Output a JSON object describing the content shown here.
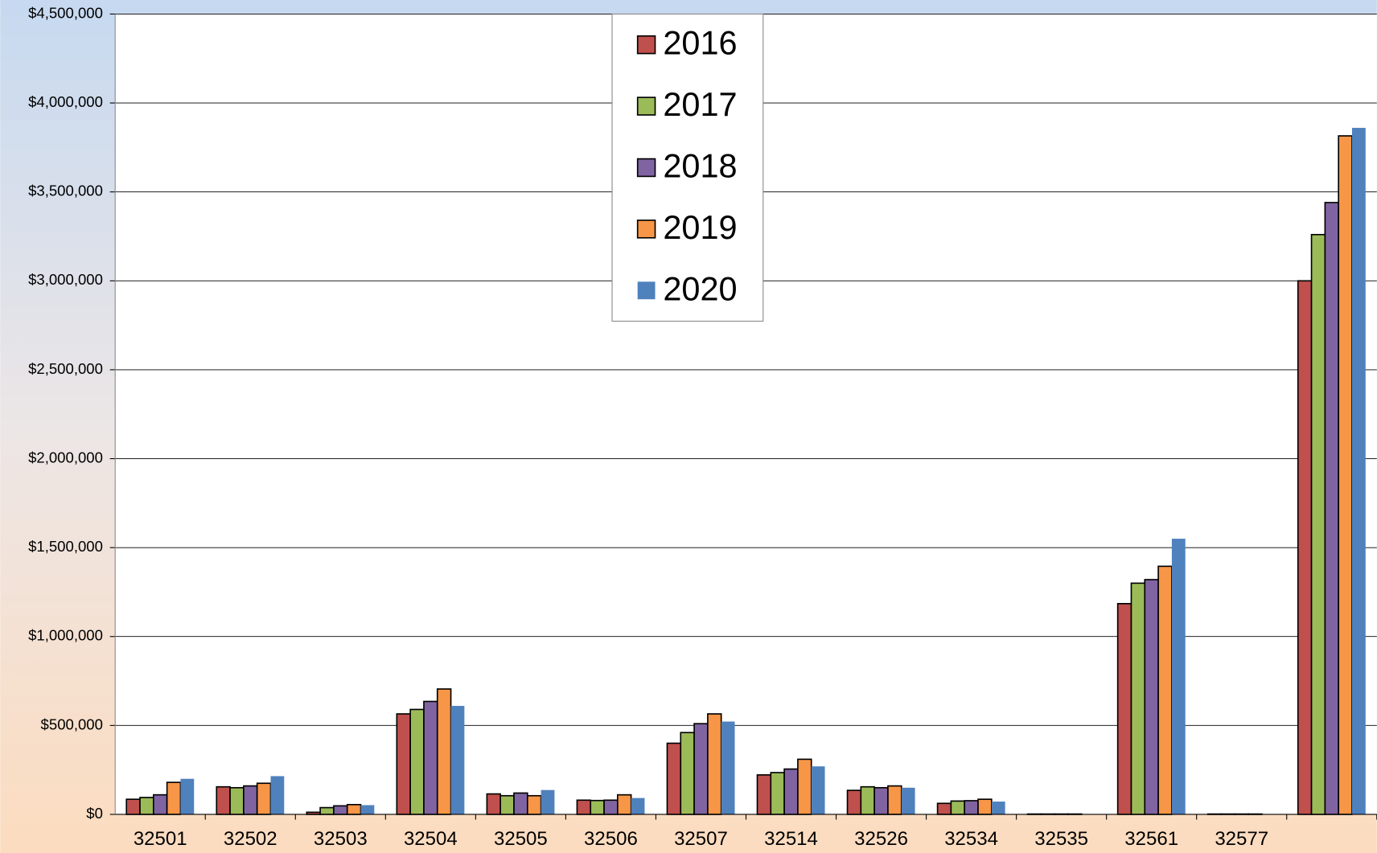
{
  "chart_data": {
    "type": "bar",
    "categories": [
      "32501",
      "32502",
      "32503",
      "32504",
      "32505",
      "32506",
      "32507",
      "32514",
      "32526",
      "32534",
      "32535",
      "32561",
      "32577",
      null
    ],
    "series": [
      {
        "name": "2016",
        "color": "#c0504d",
        "border": true,
        "values": [
          85000,
          155000,
          12000,
          565000,
          115000,
          80000,
          400000,
          222000,
          135000,
          62000,
          2000,
          1185000,
          2000,
          3000000
        ]
      },
      {
        "name": "2017",
        "color": "#9bbb59",
        "border": true,
        "values": [
          95000,
          150000,
          38000,
          590000,
          105000,
          78000,
          460000,
          235000,
          155000,
          75000,
          2000,
          1300000,
          2000,
          3260000
        ]
      },
      {
        "name": "2018",
        "color": "#8064a2",
        "border": true,
        "values": [
          110000,
          160000,
          48000,
          635000,
          120000,
          80000,
          510000,
          255000,
          150000,
          77000,
          2000,
          1320000,
          2000,
          3440000
        ]
      },
      {
        "name": "2019",
        "color": "#f79646",
        "border": true,
        "values": [
          180000,
          175000,
          55000,
          705000,
          105000,
          110000,
          565000,
          310000,
          160000,
          85000,
          2000,
          1395000,
          2000,
          3815000
        ]
      },
      {
        "name": "2020",
        "color": "#4f81bd",
        "border": false,
        "values": [
          200000,
          215000,
          52000,
          610000,
          137000,
          92000,
          522000,
          270000,
          150000,
          72000,
          2000,
          1550000,
          2000,
          3860000
        ]
      }
    ],
    "ylim": [
      0,
      4500000
    ],
    "yticks": [
      {
        "value": 0,
        "label": "$0"
      },
      {
        "value": 500000,
        "label": "$500,000"
      },
      {
        "value": 1000000,
        "label": "$1,000,000"
      },
      {
        "value": 1500000,
        "label": "$1,500,000"
      },
      {
        "value": 2000000,
        "label": "$2,000,000"
      },
      {
        "value": 2500000,
        "label": "$2,500,000"
      },
      {
        "value": 3000000,
        "label": "$3,000,000"
      },
      {
        "value": 3500000,
        "label": "$3,500,000"
      },
      {
        "value": 4000000,
        "label": "$4,000,000"
      },
      {
        "value": 4500000,
        "label": "$4,500,000"
      }
    ],
    "grid": true,
    "legend": "top"
  }
}
